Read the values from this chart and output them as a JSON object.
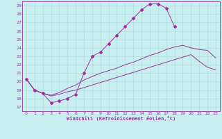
{
  "background_color": "#c8eef0",
  "grid_color": "#b0dde0",
  "line_color": "#993399",
  "xlim": [
    -0.5,
    23.5
  ],
  "ylim": [
    16.5,
    29.5
  ],
  "yticks": [
    17,
    18,
    19,
    20,
    21,
    22,
    23,
    24,
    25,
    26,
    27,
    28,
    29
  ],
  "xticks": [
    0,
    1,
    2,
    3,
    4,
    5,
    6,
    7,
    8,
    9,
    10,
    11,
    12,
    13,
    14,
    15,
    16,
    17,
    18,
    19,
    20,
    21,
    22,
    23
  ],
  "xlabel": "Windchill (Refroidissement éolien,°C)",
  "curve1_x": [
    0,
    1,
    2,
    3,
    4,
    5,
    6,
    7,
    8,
    9,
    10,
    11,
    12,
    13,
    14,
    15,
    16,
    17,
    18
  ],
  "curve1_y": [
    20.3,
    19.0,
    18.6,
    17.5,
    17.7,
    18.0,
    18.5,
    21.0,
    23.0,
    23.5,
    24.5,
    25.5,
    26.5,
    27.5,
    28.5,
    29.2,
    29.2,
    28.7,
    26.5
  ],
  "curve2_x": [
    0,
    1,
    2,
    3,
    4,
    5,
    6,
    7,
    8,
    9,
    10,
    11,
    12,
    13,
    14,
    15,
    16,
    17,
    18,
    19,
    20,
    21,
    22,
    23
  ],
  "curve2_y": [
    20.3,
    19.0,
    18.6,
    18.4,
    18.7,
    19.2,
    19.6,
    20.2,
    20.6,
    21.0,
    21.3,
    21.6,
    22.0,
    22.3,
    22.7,
    23.1,
    23.4,
    23.8,
    24.1,
    24.3,
    24.0,
    23.8,
    23.7,
    22.8
  ],
  "curve3_x": [
    0,
    1,
    2,
    3,
    4,
    5,
    6,
    7,
    8,
    9,
    10,
    11,
    12,
    13,
    14,
    15,
    16,
    17,
    18,
    19,
    20,
    21,
    22,
    23
  ],
  "curve3_y": [
    20.3,
    19.0,
    18.6,
    18.3,
    18.5,
    18.8,
    19.0,
    19.3,
    19.6,
    19.9,
    20.2,
    20.5,
    20.8,
    21.1,
    21.4,
    21.7,
    22.0,
    22.3,
    22.6,
    22.9,
    23.2,
    22.4,
    21.7,
    21.4
  ]
}
